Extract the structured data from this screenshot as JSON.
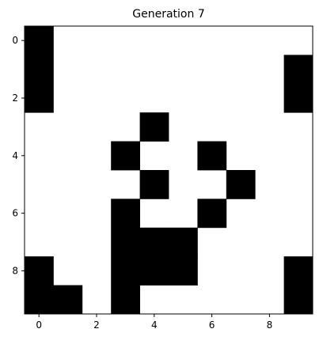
{
  "chart_data": {
    "type": "heatmap",
    "title": "Generation 7",
    "xlabel": "",
    "ylabel": "",
    "colors": {
      "alive": "#000000",
      "dead": "#ffffff"
    },
    "grid": false,
    "xlim": [
      -0.5,
      9.5
    ],
    "ylim": [
      9.5,
      -0.5
    ],
    "xticks": [
      0,
      2,
      4,
      6,
      8
    ],
    "yticks": [
      0,
      2,
      4,
      6,
      8
    ],
    "xtick_labels": [
      "0",
      "2",
      "4",
      "6",
      "8"
    ],
    "ytick_labels": [
      "0",
      "2",
      "4",
      "6",
      "8"
    ],
    "values": [
      [
        1,
        0,
        0,
        0,
        0,
        0,
        0,
        0,
        0,
        0
      ],
      [
        1,
        0,
        0,
        0,
        0,
        0,
        0,
        0,
        0,
        1
      ],
      [
        1,
        0,
        0,
        0,
        0,
        0,
        0,
        0,
        0,
        1
      ],
      [
        0,
        0,
        0,
        0,
        1,
        0,
        0,
        0,
        0,
        0
      ],
      [
        0,
        0,
        0,
        1,
        0,
        0,
        1,
        0,
        0,
        0
      ],
      [
        0,
        0,
        0,
        0,
        1,
        0,
        0,
        1,
        0,
        0
      ],
      [
        0,
        0,
        0,
        1,
        0,
        0,
        1,
        0,
        0,
        0
      ],
      [
        0,
        0,
        0,
        1,
        1,
        1,
        0,
        0,
        0,
        0
      ],
      [
        1,
        0,
        0,
        1,
        1,
        1,
        0,
        0,
        0,
        1
      ],
      [
        1,
        1,
        0,
        1,
        0,
        0,
        0,
        0,
        0,
        1
      ]
    ]
  }
}
